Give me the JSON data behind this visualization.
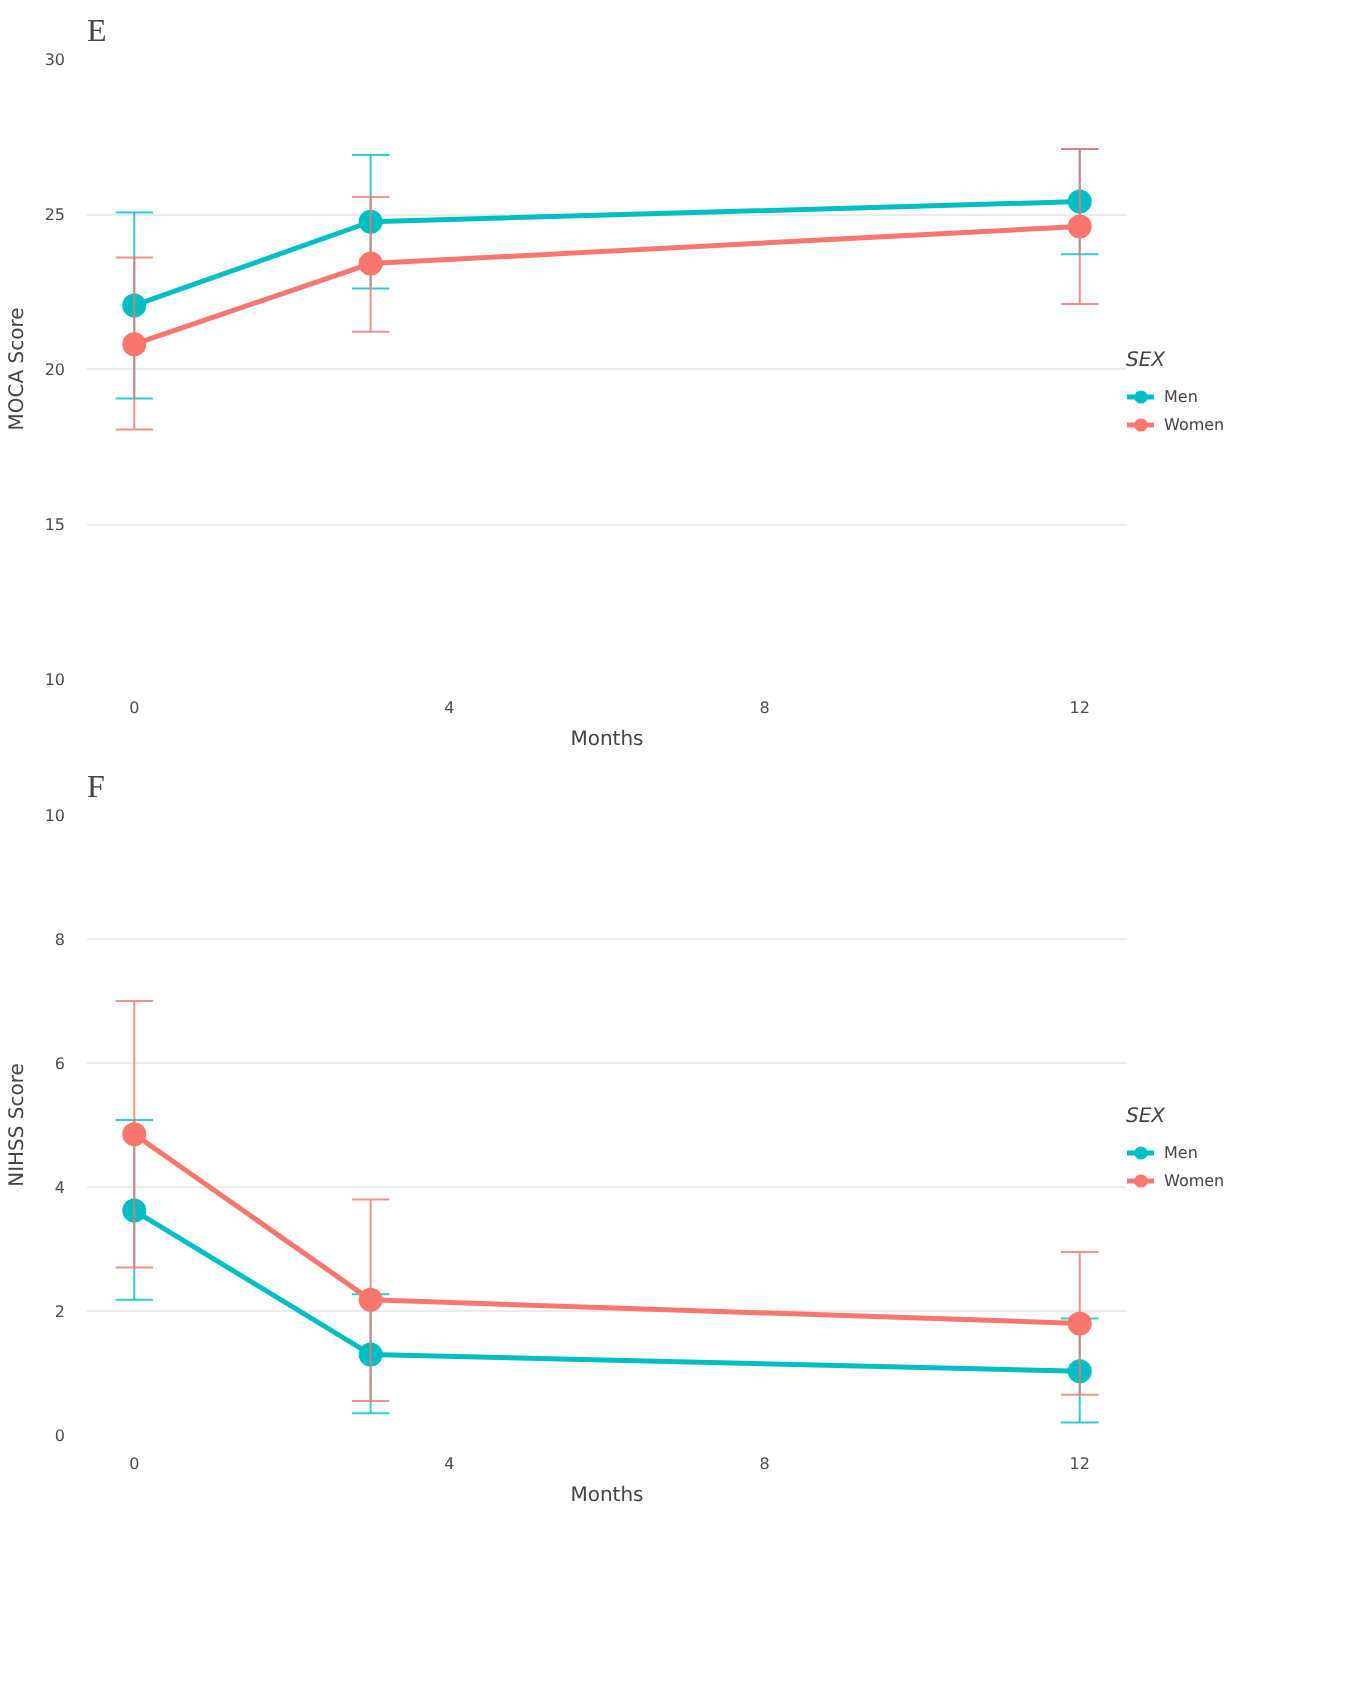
{
  "chart_data": [
    {
      "type": "line",
      "title": "E",
      "xlabel": "Months",
      "ylabel": "MOCA Score",
      "legend_title": "SEX",
      "x": [
        0,
        3,
        12
      ],
      "xlim": [
        -0.6,
        12.6
      ],
      "xticks": [
        0,
        4,
        8,
        12
      ],
      "ylim": [
        10,
        30
      ],
      "yticks": [
        10,
        15,
        20,
        25,
        30
      ],
      "grid": "y",
      "legend": "right",
      "marker": "circle",
      "line_style": "solid",
      "series": [
        {
          "name": "Men",
          "color": "#00bfc4",
          "values": [
            22.05,
            24.75,
            25.4
          ],
          "errors": [
            [
              19.05,
              25.05
            ],
            [
              22.6,
              26.9
            ],
            [
              23.7,
              27.1
            ]
          ]
        },
        {
          "name": "Women",
          "color": "#f8766d",
          "values": [
            20.8,
            23.4,
            24.6
          ],
          "errors": [
            [
              18.05,
              23.6
            ],
            [
              21.2,
              25.55
            ],
            [
              22.1,
              27.1
            ]
          ]
        }
      ]
    },
    {
      "type": "line",
      "title": "F",
      "xlabel": "Months",
      "ylabel": "NIHSS Score",
      "legend_title": "SEX",
      "x": [
        0,
        3,
        12
      ],
      "xlim": [
        -0.6,
        12.6
      ],
      "xticks": [
        0,
        4,
        8,
        12
      ],
      "ylim": [
        0,
        10
      ],
      "yticks": [
        0,
        2,
        4,
        6,
        8,
        10
      ],
      "grid": "y",
      "legend": "right",
      "marker": "circle",
      "line_style": "solid",
      "series": [
        {
          "name": "Men",
          "color": "#00bfc4",
          "values": [
            3.62,
            1.3,
            1.03
          ],
          "errors": [
            [
              2.18,
              5.08
            ],
            [
              0.35,
              2.27
            ],
            [
              0.2,
              1.88
            ]
          ]
        },
        {
          "name": "Women",
          "color": "#f8766d",
          "values": [
            4.85,
            2.18,
            1.8
          ],
          "errors": [
            [
              2.7,
              7.0
            ],
            [
              0.55,
              3.8
            ],
            [
              0.65,
              2.95
            ]
          ]
        }
      ]
    }
  ]
}
